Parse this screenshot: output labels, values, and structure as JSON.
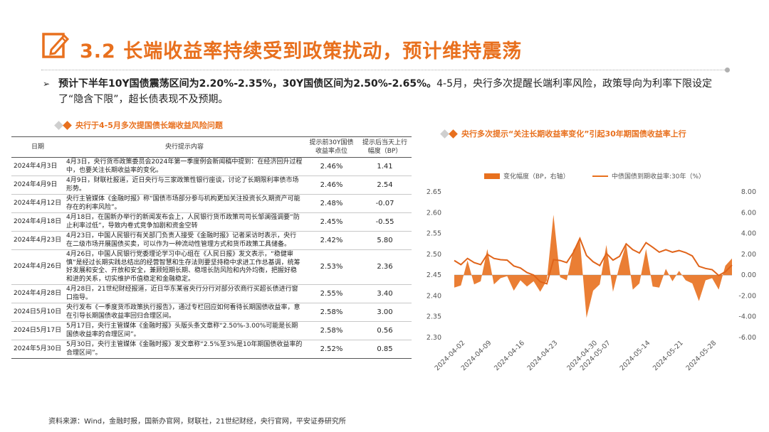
{
  "header": {
    "title": "3.2 长端收益率持续受到政策扰动，预计维持震荡"
  },
  "summary": {
    "bold_text": "预计下半年10Y国债震荡区间为2.20%-2.35%，30Y国债区间为2.50%-2.65%。",
    "normal_text": "4-5月，央行多次提醒长端利率风险，政策导向为利率下限设定了“隐含下限”，超长债表现不及预期。"
  },
  "table_section": {
    "title": "央行于4-5月多次提国债长端收益风险问题",
    "headers": [
      "日期",
      "央行提示内容",
      "提示前30Y国债收益率点位",
      "提示后当天上行幅度（BP）"
    ],
    "rows": [
      {
        "date": "2024年4月3日",
        "content": "4月3日，央行货币政策委员会2024年第一季度例会新闻稿中提到：在经济回升过程中，也要关注长期收益率的变化。",
        "level": "2.46%",
        "change": "1.41"
      },
      {
        "date": "2024年4月9日",
        "content": "4月9日，财联社报道，近日央行与三家政策性银行座谈，讨论了长期限利率债市场形势。",
        "level": "2.46%",
        "change": "2.54"
      },
      {
        "date": "2024年4月12日",
        "content": "央行主管媒体《金融时报》称“国债市场部分参与机构更加关注投资长久期资产可能存在的利率风险”。",
        "level": "2.48%",
        "change": "-0.07"
      },
      {
        "date": "2024年4月18日",
        "content": "4月18日，在国新办举行的新闻发布会上，人民银行货币政策司司长邹澜强调要“防止利率过低”，导致内卷式竞争加剧和资金空转",
        "level": "2.45%",
        "change": "-0.55"
      },
      {
        "date": "2024年4月23日",
        "content": "4月23日，中国人民银行有关部门负责人接受《金融时报》记者采访时表示，央行在二级市场开展国债买卖，可以作为一种流动性管理方式和货币政策工具储备。",
        "level": "2.42%",
        "change": "5.80"
      },
      {
        "date": "2024年4月26日",
        "content": "4月26日，中国人民银行党委理论学习中心组在《人民日报》发文表示，“稳健审慎”是经过长期实践总结出的经营智慧和生存法则要坚持稳中求进工作总基调，统筹好发展和安全、开放和安全，兼顾短期长期、稳增长防风险和内外均衡，把握好稳和进的关系，切实维护币值稳定和金融稳定。",
        "level": "2.53%",
        "change": "2.36"
      },
      {
        "date": "2024年4月28日",
        "content": "4月28日，21世纪财经报道，近日华东某省央行分行对部分农商行买超长债进行窗口指导。",
        "level": "2.55%",
        "change": "3.40"
      },
      {
        "date": "2024日5月10日",
        "content": "央行发布《一季度货币政策执行报告》，通过专栏回应如何看待长期国债收益率，意在引导长期国债收益率回归合理区间。",
        "level": "2.58%",
        "change": "3.00"
      },
      {
        "date": "2024日5月17日",
        "content": "5月17日，央行主管媒体《金融时报》头版头条文章称“2.50%-3.00%可能是长期国债收益率的合理区间”。",
        "level": "2.58%",
        "change": "0.56"
      },
      {
        "date": "2024年5月30日",
        "content": "5月30日，央行主管媒体《金融时报》发文章称“2.5%至3%是10年期国债收益率的合理区间”。",
        "level": "2.52%",
        "change": "0.85"
      }
    ]
  },
  "chart_section": {
    "title": "央行多次提示“关注长期收益率变化”引起30年期国债收益率上行"
  },
  "chart_data": {
    "type": "line",
    "legend": [
      "变化幅度（BP，右轴）",
      "中债国债到期收益率:30年（%）"
    ],
    "x": [
      "2024-04-01",
      "2024-04-02",
      "2024-04-03",
      "2024-04-07",
      "2024-04-08",
      "2024-04-09",
      "2024-04-10",
      "2024-04-11",
      "2024-04-12",
      "2024-04-15",
      "2024-04-16",
      "2024-04-17",
      "2024-04-18",
      "2024-04-19",
      "2024-04-22",
      "2024-04-23",
      "2024-04-24",
      "2024-04-25",
      "2024-04-26",
      "2024-04-28",
      "2024-04-29",
      "2024-04-30",
      "2024-05-06",
      "2024-05-07",
      "2024-05-08",
      "2024-05-09",
      "2024-05-10",
      "2024-05-11",
      "2024-05-13",
      "2024-05-14",
      "2024-05-15",
      "2024-05-16",
      "2024-05-17",
      "2024-05-20",
      "2024-05-21",
      "2024-05-22",
      "2024-05-23",
      "2024-05-24",
      "2024-05-27",
      "2024-05-28",
      "2024-05-29",
      "2024-05-30",
      "2024-05-31"
    ],
    "x_ticks": [
      "2024-04-02",
      "2024-04-09",
      "2024-04-16",
      "2024-04-23",
      "2024-04-30",
      "2024-05-07",
      "2024-05-14",
      "2024-05-21",
      "2024-05-28"
    ],
    "series": [
      {
        "name": "变化幅度（BP，右轴）",
        "type": "area",
        "axis": "right",
        "values": [
          -1.2,
          -1.0,
          1.4,
          -0.9,
          -0.6,
          2.5,
          -0.9,
          -0.3,
          -0.1,
          -1.5,
          -0.5,
          -1.1,
          -0.6,
          -1.6,
          -0.5,
          5.8,
          -0.2,
          -0.5,
          2.4,
          3.4,
          -4.1,
          -1.5,
          -0.9,
          2.9,
          -1.6,
          0.9,
          3.0,
          -1.4,
          -0.8,
          2.5,
          -1.1,
          -1.2,
          0.6,
          -0.6,
          0.4,
          -0.5,
          -0.8,
          -2.5,
          -0.5,
          -0.3,
          -1.4,
          0.9,
          1.6
        ]
      },
      {
        "name": "中债国债到期收益率:30年（%）",
        "type": "line",
        "axis": "left",
        "values": [
          2.485,
          2.475,
          2.49,
          2.48,
          2.475,
          2.5,
          2.49,
          2.487,
          2.486,
          2.472,
          2.467,
          2.456,
          2.45,
          2.434,
          2.429,
          2.487,
          2.485,
          2.48,
          2.504,
          2.538,
          2.497,
          2.482,
          2.473,
          2.502,
          2.486,
          2.495,
          2.525,
          2.511,
          2.503,
          2.528,
          2.517,
          2.505,
          2.511,
          2.505,
          2.509,
          2.504,
          2.496,
          2.471,
          2.466,
          2.463,
          2.449,
          2.458,
          2.474
        ]
      }
    ],
    "ylim_left": [
      2.3,
      2.65
    ],
    "ylim_right": [
      -6.0,
      8.0
    ],
    "left_ticks": [
      "2.30",
      "2.35",
      "2.40",
      "2.45",
      "2.50",
      "2.55",
      "2.60",
      "2.65"
    ],
    "right_ticks": [
      "-6.00",
      "-4.00",
      "-2.00",
      "0.00",
      "2.00",
      "4.00",
      "6.00",
      "8.00"
    ],
    "grid": false,
    "legend_position": "top"
  },
  "footer": {
    "source": "资料来源：Wind，金融时报，国新办官网，财联社，21世纪财经，央行官网，平安证券研究所"
  },
  "colors": {
    "accent": "#e8701e",
    "grey_diamond": "#cfcfcf",
    "rule": "#b0b0b0"
  },
  "icons": [
    "pencil-note-icon",
    "arrow-bullet-icon",
    "diamond-marker-icon"
  ]
}
